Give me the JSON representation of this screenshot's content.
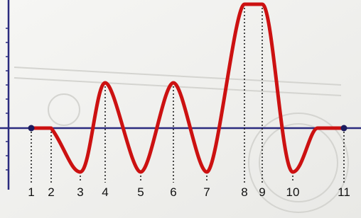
{
  "labels": [
    "1",
    "2",
    "3",
    "4",
    "5",
    "6",
    "7",
    "8",
    "9",
    "10",
    "11"
  ]
}
